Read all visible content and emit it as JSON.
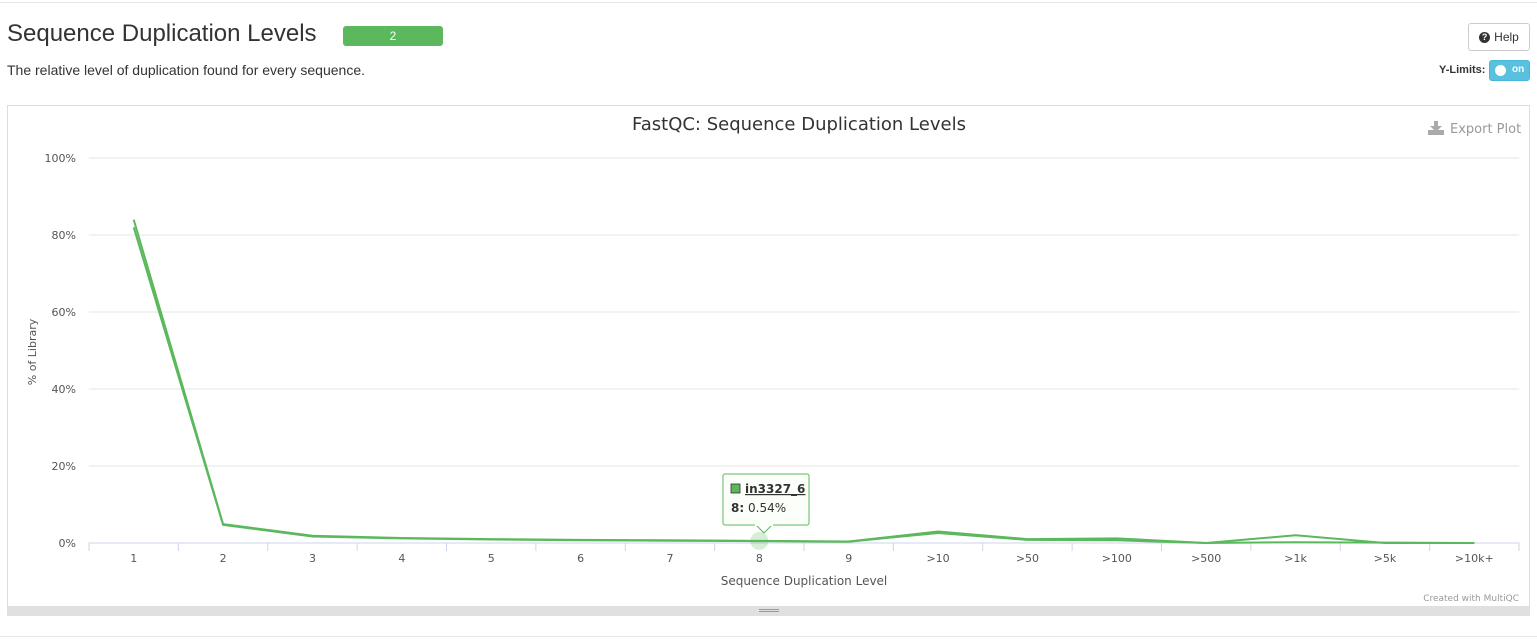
{
  "section": {
    "title": "Sequence Duplication Levels",
    "badge": "2",
    "description": "The relative level of duplication found for every sequence."
  },
  "controls": {
    "help_label": "Help",
    "ylimits_label": "Y-Limits:",
    "toggle_label": "on",
    "export_label": "Export Plot"
  },
  "credit": "Created with MultiQC",
  "colors": {
    "series": "#5cb85c",
    "badge": "#5cb85c",
    "toggle": "#5bc0de"
  },
  "tooltip": {
    "sample": "in3327_6",
    "x_label": "8",
    "value": "0.54%"
  },
  "chart_data": {
    "type": "line",
    "title": "FastQC: Sequence Duplication Levels",
    "xlabel": "Sequence Duplication Level",
    "ylabel": "% of Library",
    "categories": [
      "1",
      "2",
      "3",
      "4",
      "5",
      "6",
      "7",
      "8",
      "9",
      ">10",
      ">50",
      ">100",
      ">500",
      ">1k",
      ">5k",
      ">10k+"
    ],
    "ylim": [
      0,
      100
    ],
    "yticks": [
      "0%",
      "20%",
      "40%",
      "60%",
      "80%",
      "100%"
    ],
    "ytick_values": [
      0,
      20,
      40,
      60,
      80,
      100
    ],
    "grid": true,
    "series": [
      {
        "name": "in3327_6",
        "values": [
          84.0,
          4.9,
          1.9,
          1.3,
          1.0,
          0.8,
          0.7,
          0.54,
          0.4,
          3.0,
          1.0,
          1.2,
          0.0,
          2.0,
          0.0,
          0.0
        ]
      },
      {
        "values": [
          82.0,
          4.7,
          1.7,
          1.2,
          0.9,
          0.7,
          0.6,
          0.5,
          0.35,
          2.6,
          0.8,
          0.7,
          0.0,
          0.2,
          0.1,
          0.0
        ]
      }
    ]
  }
}
